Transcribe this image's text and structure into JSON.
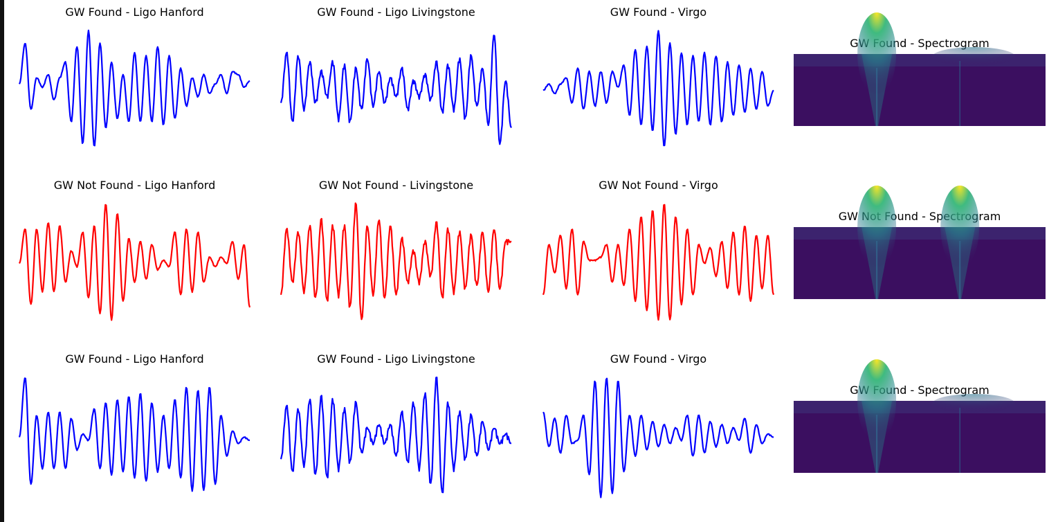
{
  "colors": {
    "found": "#0000ff",
    "not_found": "#ff0000",
    "spectrogram_bg": "#3b0f60",
    "spectrogram_hot": "#fde725"
  },
  "rows": [
    {
      "label_class": "found",
      "panels": [
        {
          "title": "GW Found - Ligo Hanford"
        },
        {
          "title": "GW Found - Ligo Livingstone"
        },
        {
          "title": "GW Found - Virgo"
        },
        {
          "title": "GW Found - Spectrogram"
        }
      ]
    },
    {
      "label_class": "not_found",
      "panels": [
        {
          "title": "GW Not Found - Ligo Hanford"
        },
        {
          "title": "GW Not Found - Livingstone"
        },
        {
          "title": "GW Not Found - Virgo"
        },
        {
          "title": "GW Not Found - Spectrogram"
        }
      ]
    },
    {
      "label_class": "found",
      "panels": [
        {
          "title": "GW Found - Ligo Hanford"
        },
        {
          "title": "GW Found - Ligo Livingstone"
        },
        {
          "title": "GW Found - Virgo"
        },
        {
          "title": "GW Found - Spectrogram"
        }
      ]
    }
  ],
  "chart_data": [
    {
      "type": "line",
      "title": "GW Found - Ligo Hanford",
      "color": "#0000ff",
      "grid": false,
      "axes": "off",
      "x": [
        0,
        1,
        2,
        3,
        4,
        5,
        6,
        7,
        8,
        9,
        10,
        11,
        12,
        13,
        14,
        15,
        16,
        17,
        18,
        19,
        20,
        21,
        22,
        23,
        24,
        25,
        26,
        27,
        28,
        29,
        30,
        31,
        32,
        33,
        34,
        35,
        36,
        37,
        38,
        39,
        40
      ],
      "y": [
        0.1,
        0.75,
        -0.3,
        0.2,
        0.05,
        0.25,
        -0.15,
        0.2,
        0.45,
        -0.5,
        0.7,
        -0.85,
        0.95,
        -0.9,
        0.75,
        -0.6,
        0.45,
        -0.45,
        0.25,
        -0.5,
        0.6,
        -0.5,
        0.55,
        -0.5,
        0.7,
        -0.55,
        0.55,
        -0.45,
        0.35,
        -0.25,
        0.2,
        -0.1,
        0.25,
        -0.05,
        0.1,
        0.25,
        -0.05,
        0.3,
        0.25,
        0.05,
        0.15
      ]
    },
    {
      "type": "line",
      "title": "GW Found - Ligo Livingstone",
      "color": "#0000ff",
      "grid": false,
      "axes": "off",
      "x": [
        0,
        1,
        2,
        3,
        4,
        5,
        6,
        7,
        8,
        9,
        10,
        11,
        12,
        13,
        14,
        15,
        16,
        17,
        18,
        19,
        20,
        21,
        22,
        23,
        24,
        25,
        26,
        27,
        28,
        29,
        30,
        31,
        32,
        33,
        34,
        35,
        36,
        37,
        38,
        39,
        40
      ],
      "y": [
        -0.2,
        0.6,
        -0.5,
        0.55,
        -0.3,
        0.45,
        -0.2,
        0.3,
        -0.1,
        0.45,
        -0.45,
        0.4,
        -0.5,
        0.35,
        -0.3,
        0.5,
        -0.25,
        0.3,
        -0.2,
        0.2,
        -0.1,
        0.35,
        -0.3,
        0.15,
        -0.1,
        0.25,
        -0.15,
        0.45,
        -0.35,
        0.4,
        -0.3,
        0.5,
        -0.45,
        0.55,
        -0.25,
        0.35,
        -0.55,
        0.9,
        -0.85,
        0.15,
        -0.6
      ]
    },
    {
      "type": "line",
      "title": "GW Found - Virgo",
      "color": "#0000ff",
      "grid": false,
      "axes": "off",
      "x": [
        0,
        1,
        2,
        3,
        4,
        5,
        6,
        7,
        8,
        9,
        10,
        11,
        12,
        13,
        14,
        15,
        16,
        17,
        18,
        19,
        20,
        21,
        22,
        23,
        24,
        25,
        26,
        27,
        28,
        29,
        30,
        31,
        32,
        33,
        34,
        35,
        36,
        37,
        38,
        39,
        40
      ],
      "y": [
        0.0,
        0.1,
        -0.05,
        0.1,
        0.2,
        -0.2,
        0.35,
        -0.3,
        0.3,
        -0.25,
        0.3,
        -0.2,
        0.3,
        0.05,
        0.4,
        -0.4,
        0.65,
        -0.55,
        0.7,
        -0.65,
        0.95,
        -0.9,
        0.75,
        -0.7,
        0.6,
        -0.55,
        0.55,
        -0.5,
        0.6,
        -0.55,
        0.55,
        -0.5,
        0.45,
        -0.4,
        0.4,
        -0.35,
        0.35,
        -0.3,
        0.3,
        -0.25,
        0.0
      ]
    },
    {
      "type": "heatmap",
      "title": "GW Found - Spectrogram",
      "axes": "off",
      "description_values": {
        "bright_spot_columns": [
          0.33
        ],
        "secondary_trail_columns": [
          0.66
        ]
      }
    },
    {
      "type": "line",
      "title": "GW Not Found - Ligo Hanford",
      "color": "#ff0000",
      "grid": false,
      "axes": "off",
      "x": [
        0,
        1,
        2,
        3,
        4,
        5,
        6,
        7,
        8,
        9,
        10,
        11,
        12,
        13,
        14,
        15,
        16,
        17,
        18,
        19,
        20,
        21,
        22,
        23,
        24,
        25,
        26,
        27,
        28,
        29,
        30,
        31,
        32,
        33,
        34,
        35,
        36,
        37,
        38,
        39,
        40
      ],
      "y": [
        0.0,
        0.55,
        -0.65,
        0.55,
        -0.45,
        0.65,
        -0.45,
        0.6,
        -0.3,
        0.2,
        -0.05,
        0.5,
        -0.55,
        0.6,
        -0.8,
        0.95,
        -0.9,
        0.8,
        -0.6,
        0.4,
        -0.3,
        0.35,
        -0.25,
        0.3,
        -0.1,
        0.05,
        -0.05,
        0.5,
        -0.5,
        0.55,
        -0.45,
        0.5,
        -0.3,
        0.1,
        -0.05,
        0.1,
        0.0,
        0.35,
        -0.25,
        0.3,
        -0.7
      ]
    },
    {
      "type": "line",
      "title": "GW Not Found - Livingstone",
      "color": "#ff0000",
      "grid": false,
      "axes": "off",
      "x": [
        0,
        1,
        2,
        3,
        4,
        5,
        6,
        7,
        8,
        9,
        10,
        11,
        12,
        13,
        14,
        15,
        16,
        17,
        18,
        19,
        20,
        21,
        22,
        23,
        24,
        25,
        26,
        27,
        28,
        29,
        30,
        31,
        32,
        33,
        34,
        35,
        36,
        37,
        38,
        39,
        40
      ],
      "y": [
        -0.5,
        0.55,
        -0.3,
        0.5,
        -0.45,
        0.6,
        -0.55,
        0.7,
        -0.6,
        0.6,
        -0.5,
        0.6,
        -0.7,
        0.95,
        -0.9,
        0.6,
        -0.5,
        0.7,
        -0.55,
        0.6,
        -0.5,
        0.4,
        -0.3,
        0.2,
        -0.3,
        0.35,
        -0.2,
        0.65,
        -0.55,
        0.55,
        -0.45,
        0.5,
        -0.4,
        0.45,
        -0.35,
        0.5,
        -0.45,
        0.55,
        -0.4,
        0.35,
        0.35
      ]
    },
    {
      "type": "line",
      "title": "GW Not Found - Virgo",
      "color": "#ff0000",
      "grid": false,
      "axes": "off",
      "x": [
        0,
        1,
        2,
        3,
        4,
        5,
        6,
        7,
        8,
        9,
        10,
        11,
        12,
        13,
        14,
        15,
        16,
        17,
        18,
        19,
        20,
        21,
        22,
        23,
        24,
        25,
        26,
        27,
        28,
        29,
        30,
        31,
        32,
        33,
        34,
        35,
        36,
        37,
        38,
        39,
        40
      ],
      "y": [
        -0.5,
        0.3,
        -0.15,
        0.45,
        -0.4,
        0.55,
        -0.5,
        0.35,
        0.05,
        0.05,
        0.1,
        0.3,
        -0.3,
        0.3,
        -0.35,
        0.55,
        -0.6,
        0.75,
        -0.75,
        0.85,
        -0.9,
        0.95,
        -0.9,
        0.75,
        -0.65,
        0.55,
        -0.5,
        0.3,
        0.0,
        0.25,
        -0.2,
        0.35,
        -0.4,
        0.5,
        -0.5,
        0.6,
        -0.6,
        0.45,
        -0.4,
        0.45,
        -0.5
      ]
    },
    {
      "type": "heatmap",
      "title": "GW Not Found - Spectrogram",
      "axes": "off",
      "description_values": {
        "bright_spot_columns": [
          0.33,
          0.66
        ]
      }
    },
    {
      "type": "line",
      "title": "GW Found - Ligo Hanford",
      "color": "#0000ff",
      "grid": false,
      "axes": "off",
      "x": [
        0,
        1,
        2,
        3,
        4,
        5,
        6,
        7,
        8,
        9,
        10,
        11,
        12,
        13,
        14,
        15,
        16,
        17,
        18,
        19,
        20,
        21,
        22,
        23,
        24,
        25,
        26,
        27,
        28,
        29,
        30,
        31,
        32,
        33,
        34,
        35,
        36,
        37,
        38,
        39,
        40
      ],
      "y": [
        0.0,
        0.95,
        -0.75,
        0.35,
        -0.5,
        0.4,
        -0.5,
        0.4,
        -0.5,
        0.3,
        -0.2,
        0.05,
        -0.05,
        0.45,
        -0.5,
        0.55,
        -0.6,
        0.6,
        -0.55,
        0.65,
        -0.65,
        0.7,
        -0.7,
        0.55,
        -0.55,
        0.35,
        -0.5,
        0.6,
        -0.65,
        0.8,
        -0.85,
        0.75,
        -0.85,
        0.8,
        -0.75,
        0.35,
        -0.3,
        0.1,
        -0.1,
        0.0,
        -0.05
      ]
    },
    {
      "type": "line",
      "title": "GW Found - Ligo Livingstone",
      "color": "#0000ff",
      "grid": false,
      "axes": "off",
      "x": [
        0,
        1,
        2,
        3,
        4,
        5,
        6,
        7,
        8,
        9,
        10,
        11,
        12,
        13,
        14,
        15,
        16,
        17,
        18,
        19,
        20,
        21,
        22,
        23,
        24,
        25,
        26,
        27,
        28,
        29,
        30,
        31,
        32,
        33,
        34,
        35,
        36,
        37,
        38,
        39,
        40
      ],
      "y": [
        -0.35,
        0.5,
        -0.55,
        0.45,
        -0.45,
        0.6,
        -0.6,
        0.65,
        -0.65,
        0.6,
        -0.5,
        0.45,
        -0.4,
        0.55,
        -0.25,
        0.15,
        -0.1,
        0.2,
        -0.1,
        0.2,
        -0.3,
        0.4,
        -0.4,
        0.55,
        -0.5,
        0.7,
        -0.75,
        0.95,
        -0.9,
        0.55,
        -0.5,
        0.4,
        -0.35,
        0.35,
        -0.3,
        0.25,
        -0.2,
        0.15,
        -0.1,
        0.05,
        -0.1
      ]
    },
    {
      "type": "line",
      "title": "GW Found - Virgo",
      "color": "#0000ff",
      "grid": false,
      "axes": "off",
      "x": [
        0,
        1,
        2,
        3,
        4,
        5,
        6,
        7,
        8,
        9,
        10,
        11,
        12,
        13,
        14,
        15,
        16,
        17,
        18,
        19,
        20,
        21,
        22,
        23,
        24,
        25,
        26,
        27,
        28,
        29,
        30,
        31,
        32,
        33,
        34,
        35,
        36,
        37,
        38,
        39,
        40
      ],
      "y": [
        0.4,
        -0.15,
        0.3,
        -0.25,
        0.35,
        -0.1,
        -0.05,
        0.35,
        -0.6,
        0.9,
        -0.95,
        0.95,
        -0.9,
        0.9,
        -0.55,
        0.35,
        -0.3,
        0.35,
        -0.2,
        0.25,
        -0.15,
        0.2,
        -0.1,
        0.15,
        -0.05,
        0.35,
        -0.3,
        0.35,
        -0.25,
        0.25,
        -0.15,
        0.2,
        -0.1,
        0.15,
        -0.05,
        0.3,
        -0.25,
        0.2,
        -0.1,
        0.05,
        0.0
      ]
    },
    {
      "type": "heatmap",
      "title": "GW Found - Spectrogram",
      "axes": "off",
      "description_values": {
        "bright_spot_columns": [
          0.33
        ],
        "secondary_trail_columns": [
          0.66
        ]
      }
    }
  ]
}
